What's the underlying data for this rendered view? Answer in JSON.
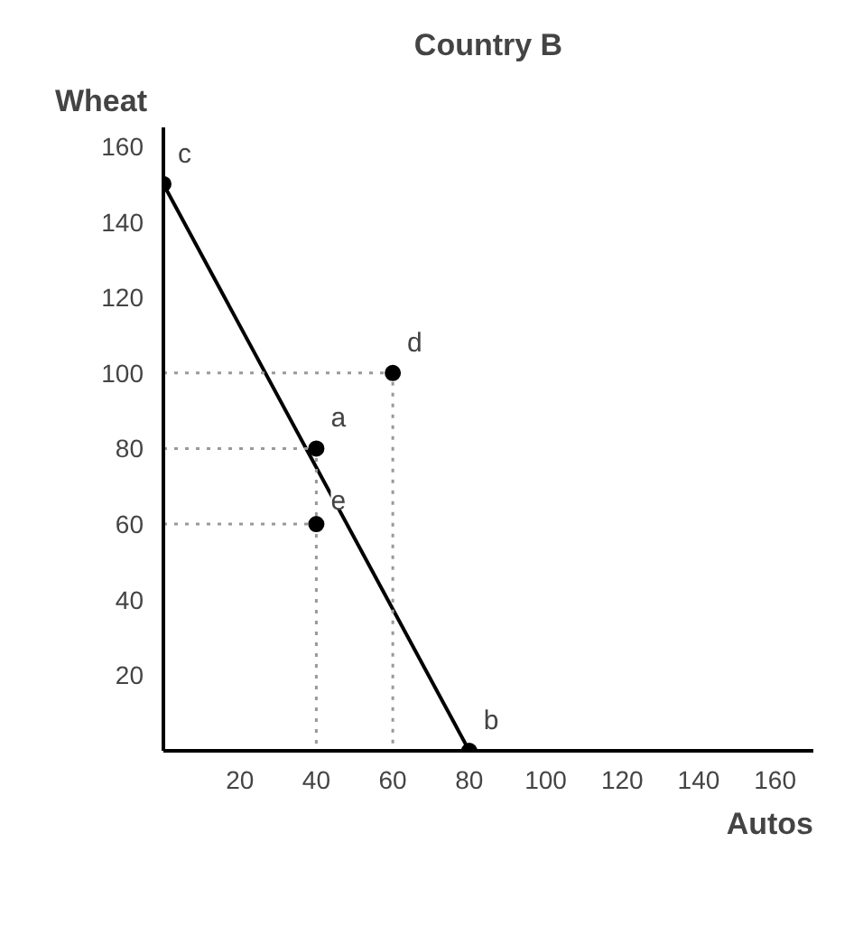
{
  "chart_data": {
    "type": "scatter",
    "title": "Country B",
    "xlabel": "Autos",
    "ylabel": "Wheat",
    "xlim": [
      0,
      170
    ],
    "ylim": [
      0,
      165
    ],
    "xticks": [
      20,
      40,
      60,
      80,
      100,
      120,
      140,
      160
    ],
    "yticks": [
      20,
      40,
      60,
      80,
      100,
      120,
      140,
      160
    ],
    "grid": false,
    "series": [
      {
        "type": "line",
        "color": "#000000",
        "line_style": "solid",
        "marker": "none",
        "x": [
          0,
          80
        ],
        "values": [
          150,
          0
        ]
      },
      {
        "type": "line",
        "color": "#999999",
        "line_style": "dotted",
        "marker": "none",
        "x": [
          0,
          60,
          60
        ],
        "values": [
          100,
          100,
          0
        ]
      },
      {
        "type": "line",
        "color": "#999999",
        "line_style": "dotted",
        "marker": "none",
        "x": [
          0,
          40,
          40
        ],
        "values": [
          80,
          80,
          0
        ]
      },
      {
        "type": "line",
        "color": "#999999",
        "line_style": "dotted",
        "marker": "none",
        "x": [
          0,
          40
        ],
        "values": [
          60,
          60
        ]
      },
      {
        "color": "#000000",
        "marker": "circle",
        "x": [
          0,
          60,
          40,
          40,
          80
        ],
        "values": [
          150,
          100,
          80,
          60,
          0
        ]
      }
    ],
    "annotations": [
      {
        "text": "c",
        "x": 0,
        "y": 150
      },
      {
        "text": "d",
        "x": 60,
        "y": 100
      },
      {
        "text": "a",
        "x": 40,
        "y": 80
      },
      {
        "text": "e",
        "x": 40,
        "y": 60
      },
      {
        "text": "b",
        "x": 80,
        "y": 0
      }
    ]
  }
}
